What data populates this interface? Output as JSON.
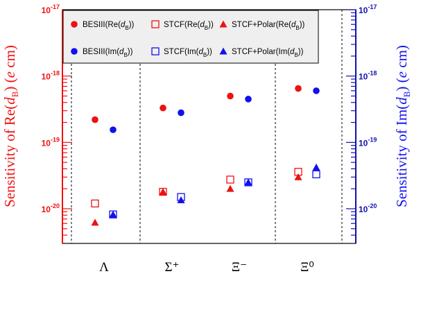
{
  "chart_data": {
    "type": "scatter",
    "categories": [
      "Λ",
      "Σ⁺",
      "Ξ⁻",
      "Ξ⁰"
    ],
    "y_scale": "log",
    "ylim": [
      3e-21,
      1e-17
    ],
    "y_ticks": [
      1e-20,
      1e-19,
      1e-18,
      1e-17
    ],
    "y_tick_labels": [
      {
        "base": "10",
        "exp": "-20"
      },
      {
        "base": "10",
        "exp": "-19"
      },
      {
        "base": "10",
        "exp": "-18"
      },
      {
        "base": "10",
        "exp": "-17"
      }
    ],
    "ylabel_left": {
      "pre": "Sensitivity of Re(",
      "d": "d",
      "sub": "B",
      "post": ") (",
      "e": "e",
      "unit": " cm)"
    },
    "ylabel_right": {
      "pre": "Sensitivity of Im(",
      "d": "d",
      "sub": "B",
      "post": ") (",
      "e": "e",
      "unit": " cm)"
    },
    "legend_placement": "top",
    "series": [
      {
        "name": {
          "pre": "BESIII(Re(",
          "d": "d",
          "sub": "B",
          "post": "))"
        },
        "marker": "filled-circle",
        "color": "#ee1111",
        "offset": "left",
        "values": [
          2.2e-19,
          3.3e-19,
          5e-19,
          6.5e-19
        ]
      },
      {
        "name": {
          "pre": "BESIII(Im(",
          "d": "d",
          "sub": "B",
          "post": "))"
        },
        "marker": "filled-circle",
        "color": "#1111ee",
        "offset": "right",
        "values": [
          1.55e-19,
          2.8e-19,
          4.5e-19,
          6e-19
        ]
      },
      {
        "name": {
          "pre": "STCF(Re(",
          "d": "d",
          "sub": "B",
          "post": "))"
        },
        "marker": "open-square",
        "color": "#ee1111",
        "offset": "left",
        "values": [
          1.2e-20,
          1.8e-20,
          2.75e-20,
          3.6e-20
        ]
      },
      {
        "name": {
          "pre": "STCF(Im(",
          "d": "d",
          "sub": "B",
          "post": "))"
        },
        "marker": "open-square",
        "color": "#1111ee",
        "offset": "right",
        "values": [
          8.2e-21,
          1.5e-20,
          2.5e-20,
          3.3e-20
        ]
      },
      {
        "name": {
          "pre": "STCF+Polar(Re(",
          "d": "d",
          "sub": "B",
          "post": "))"
        },
        "marker": "filled-triangle",
        "color": "#ee1111",
        "offset": "left",
        "values": [
          6.2e-21,
          1.8e-20,
          2e-20,
          3e-20
        ]
      },
      {
        "name": {
          "pre": "STCF+Polar(Im(",
          "d": "d",
          "sub": "B",
          "post": "))"
        },
        "marker": "filled-triangle",
        "color": "#1111ee",
        "offset": "right",
        "values": [
          8.2e-21,
          1.35e-20,
          2.5e-20,
          4.2e-20
        ]
      }
    ],
    "legend_order": [
      0,
      2,
      4,
      1,
      3,
      5
    ],
    "colors": {
      "left_axis": "#ee1111",
      "right_axis": "#1111aa",
      "legend_bg": "#efefef"
    }
  }
}
